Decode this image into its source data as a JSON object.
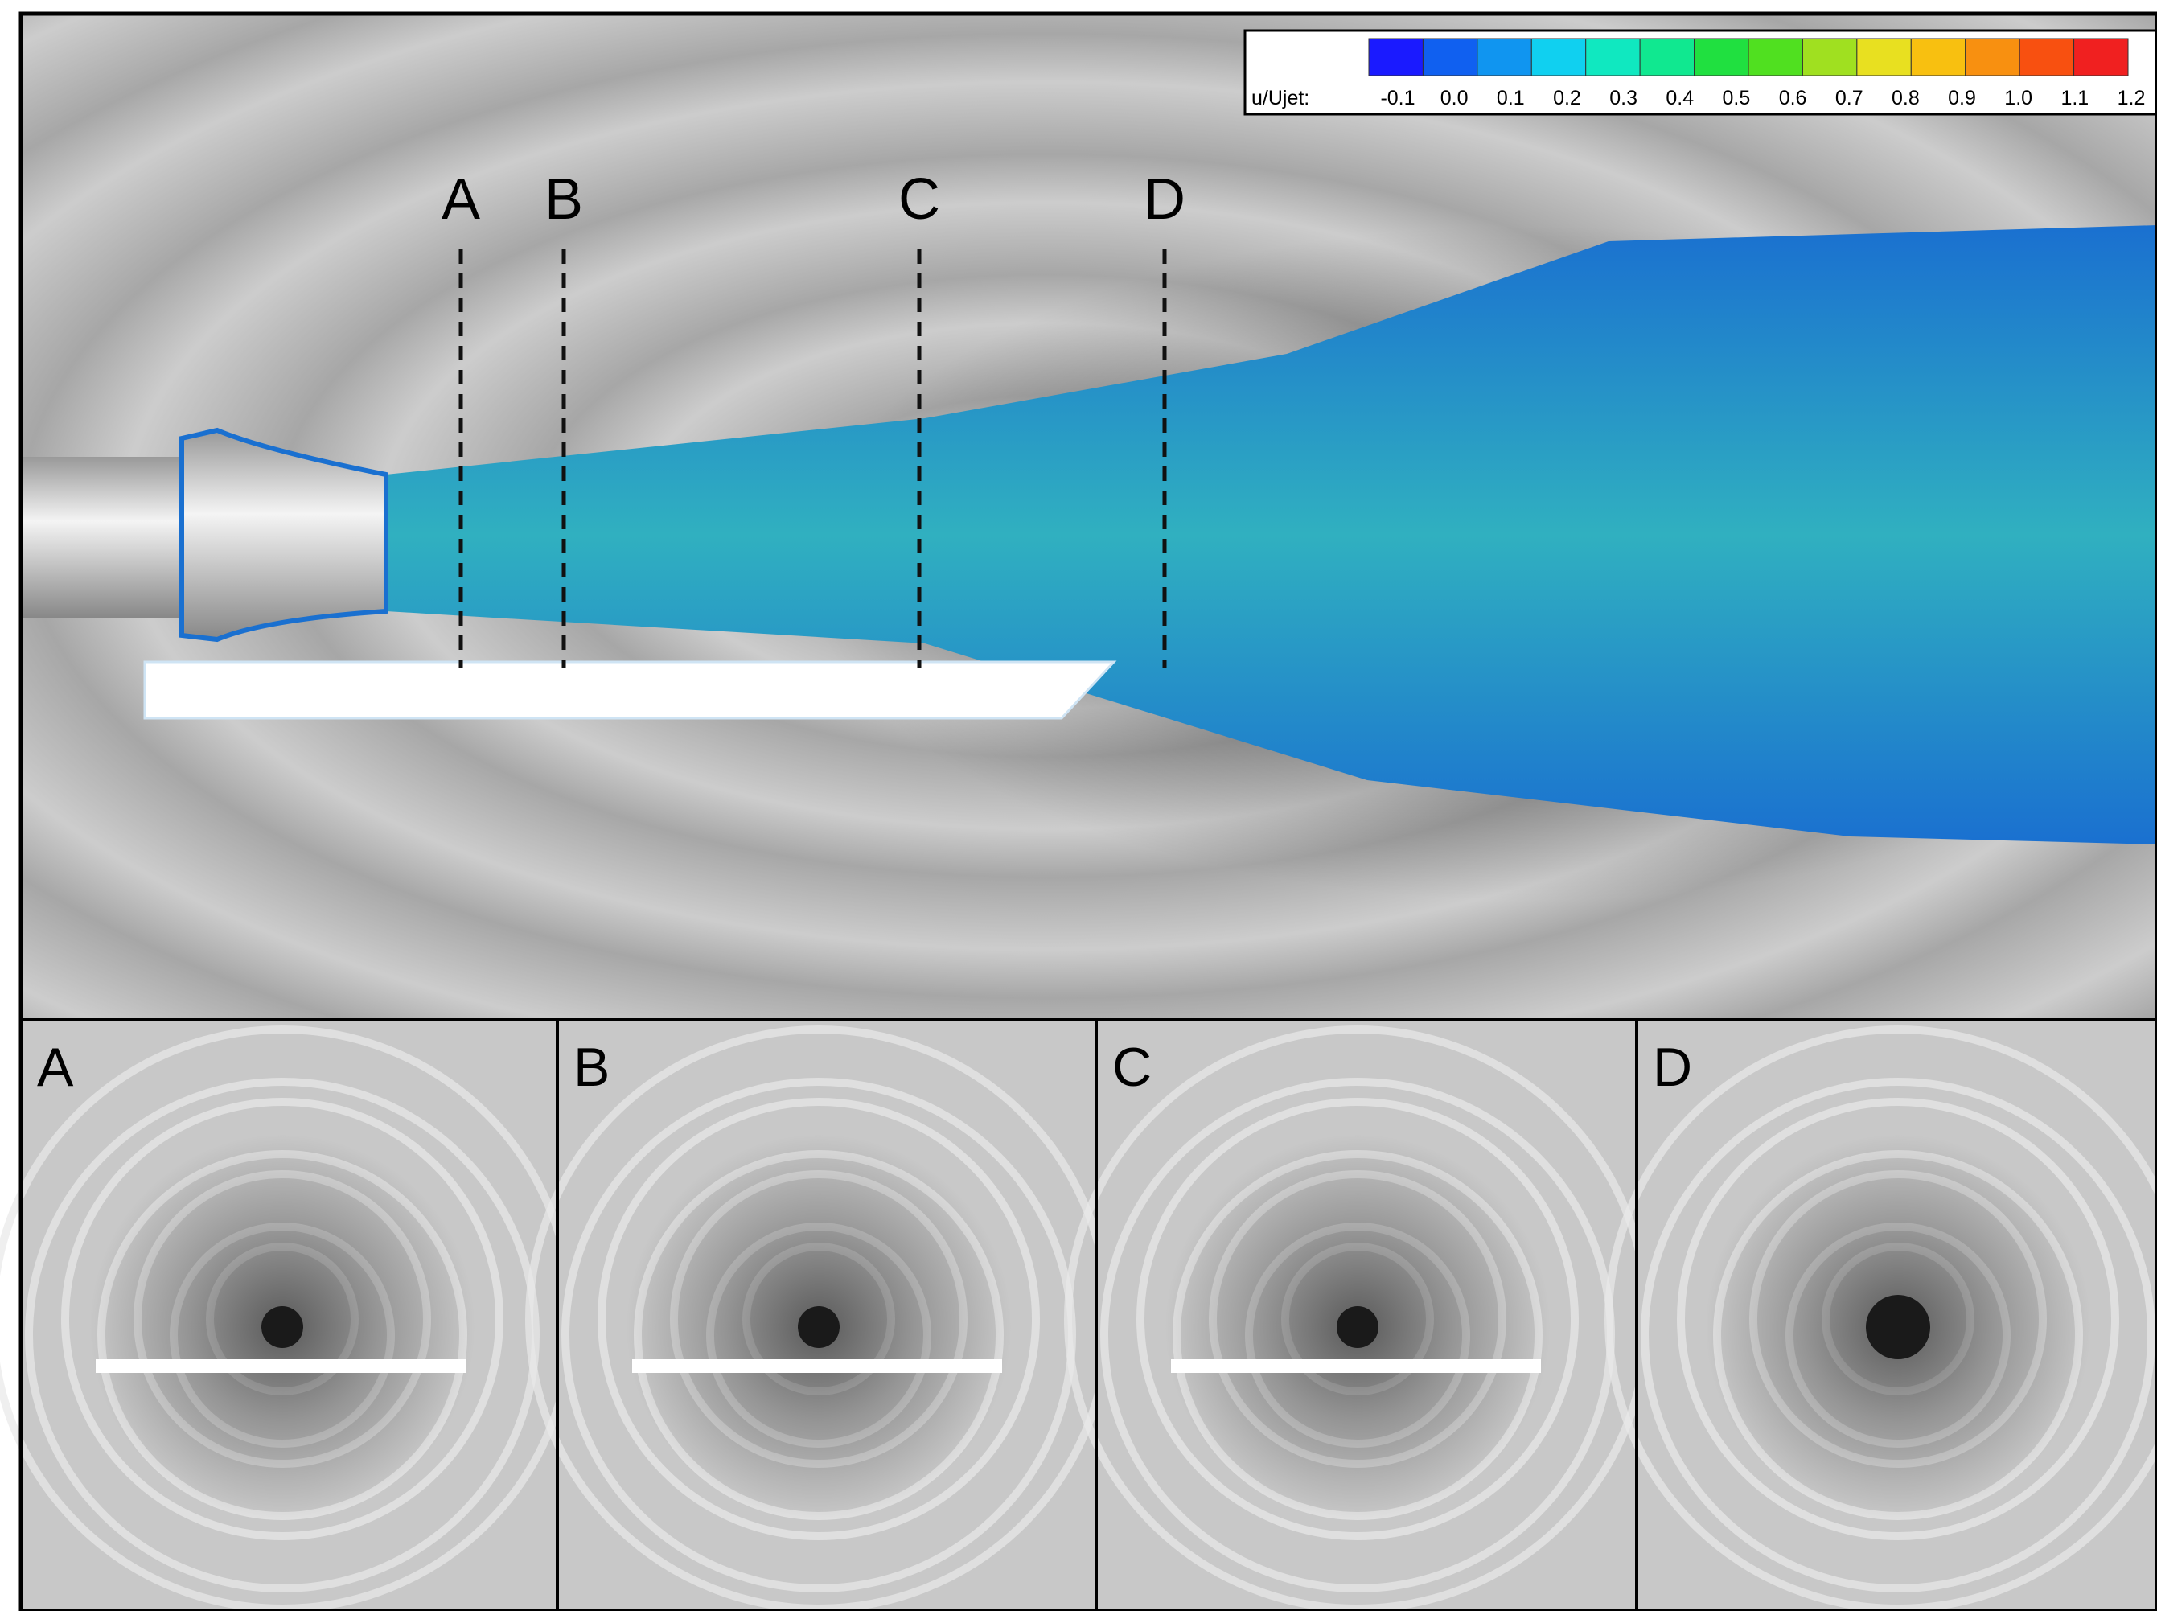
{
  "colorbar": {
    "label": "u/Ujet:",
    "ticks": [
      "-0.1",
      "0.0",
      "0.1",
      "0.2",
      "0.3",
      "0.4",
      "0.5",
      "0.6",
      "0.7",
      "0.8",
      "0.9",
      "1.0",
      "1.1",
      "1.2"
    ],
    "colors": [
      "#1a1aff",
      "#1060f0",
      "#1095f0",
      "#10d0f0",
      "#10e8c0",
      "#10e890",
      "#20e040",
      "#50e020",
      "#a0e020",
      "#e8e020",
      "#f8c010",
      "#f89010",
      "#f85010",
      "#f02020"
    ]
  },
  "sections": [
    "A",
    "B",
    "C",
    "D"
  ]
}
